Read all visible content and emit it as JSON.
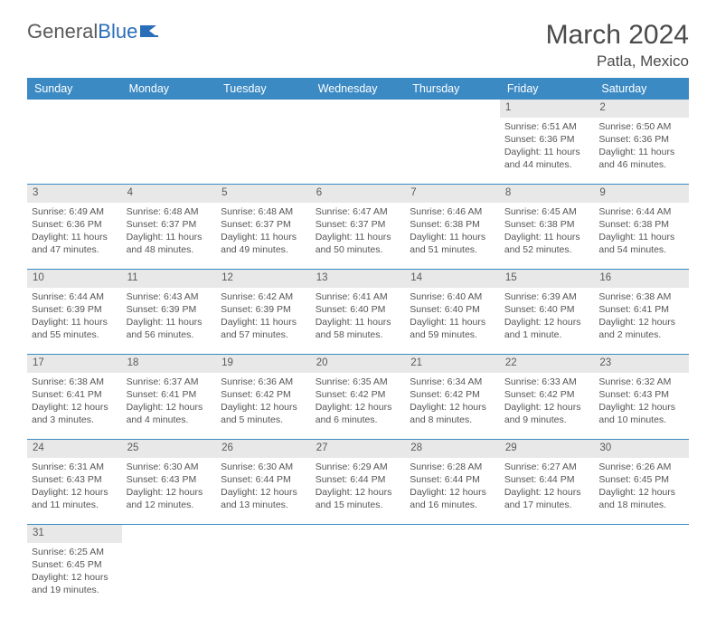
{
  "brand": {
    "part1": "General",
    "part2": "Blue"
  },
  "title": "March 2024",
  "location": "Patla, Mexico",
  "colors": {
    "header_bg": "#3b8ac4",
    "header_text": "#ffffff",
    "daynum_bg": "#e8e8e8",
    "rule": "#3b8ac4",
    "text": "#4a4a4a",
    "brand_blue": "#2a6db8"
  },
  "day_names": [
    "Sunday",
    "Monday",
    "Tuesday",
    "Wednesday",
    "Thursday",
    "Friday",
    "Saturday"
  ],
  "weeks": [
    [
      null,
      null,
      null,
      null,
      null,
      {
        "n": "1",
        "sr": "Sunrise: 6:51 AM",
        "ss": "Sunset: 6:36 PM",
        "d1": "Daylight: 11 hours",
        "d2": "and 44 minutes."
      },
      {
        "n": "2",
        "sr": "Sunrise: 6:50 AM",
        "ss": "Sunset: 6:36 PM",
        "d1": "Daylight: 11 hours",
        "d2": "and 46 minutes."
      }
    ],
    [
      {
        "n": "3",
        "sr": "Sunrise: 6:49 AM",
        "ss": "Sunset: 6:36 PM",
        "d1": "Daylight: 11 hours",
        "d2": "and 47 minutes."
      },
      {
        "n": "4",
        "sr": "Sunrise: 6:48 AM",
        "ss": "Sunset: 6:37 PM",
        "d1": "Daylight: 11 hours",
        "d2": "and 48 minutes."
      },
      {
        "n": "5",
        "sr": "Sunrise: 6:48 AM",
        "ss": "Sunset: 6:37 PM",
        "d1": "Daylight: 11 hours",
        "d2": "and 49 minutes."
      },
      {
        "n": "6",
        "sr": "Sunrise: 6:47 AM",
        "ss": "Sunset: 6:37 PM",
        "d1": "Daylight: 11 hours",
        "d2": "and 50 minutes."
      },
      {
        "n": "7",
        "sr": "Sunrise: 6:46 AM",
        "ss": "Sunset: 6:38 PM",
        "d1": "Daylight: 11 hours",
        "d2": "and 51 minutes."
      },
      {
        "n": "8",
        "sr": "Sunrise: 6:45 AM",
        "ss": "Sunset: 6:38 PM",
        "d1": "Daylight: 11 hours",
        "d2": "and 52 minutes."
      },
      {
        "n": "9",
        "sr": "Sunrise: 6:44 AM",
        "ss": "Sunset: 6:38 PM",
        "d1": "Daylight: 11 hours",
        "d2": "and 54 minutes."
      }
    ],
    [
      {
        "n": "10",
        "sr": "Sunrise: 6:44 AM",
        "ss": "Sunset: 6:39 PM",
        "d1": "Daylight: 11 hours",
        "d2": "and 55 minutes."
      },
      {
        "n": "11",
        "sr": "Sunrise: 6:43 AM",
        "ss": "Sunset: 6:39 PM",
        "d1": "Daylight: 11 hours",
        "d2": "and 56 minutes."
      },
      {
        "n": "12",
        "sr": "Sunrise: 6:42 AM",
        "ss": "Sunset: 6:39 PM",
        "d1": "Daylight: 11 hours",
        "d2": "and 57 minutes."
      },
      {
        "n": "13",
        "sr": "Sunrise: 6:41 AM",
        "ss": "Sunset: 6:40 PM",
        "d1": "Daylight: 11 hours",
        "d2": "and 58 minutes."
      },
      {
        "n": "14",
        "sr": "Sunrise: 6:40 AM",
        "ss": "Sunset: 6:40 PM",
        "d1": "Daylight: 11 hours",
        "d2": "and 59 minutes."
      },
      {
        "n": "15",
        "sr": "Sunrise: 6:39 AM",
        "ss": "Sunset: 6:40 PM",
        "d1": "Daylight: 12 hours",
        "d2": "and 1 minute."
      },
      {
        "n": "16",
        "sr": "Sunrise: 6:38 AM",
        "ss": "Sunset: 6:41 PM",
        "d1": "Daylight: 12 hours",
        "d2": "and 2 minutes."
      }
    ],
    [
      {
        "n": "17",
        "sr": "Sunrise: 6:38 AM",
        "ss": "Sunset: 6:41 PM",
        "d1": "Daylight: 12 hours",
        "d2": "and 3 minutes."
      },
      {
        "n": "18",
        "sr": "Sunrise: 6:37 AM",
        "ss": "Sunset: 6:41 PM",
        "d1": "Daylight: 12 hours",
        "d2": "and 4 minutes."
      },
      {
        "n": "19",
        "sr": "Sunrise: 6:36 AM",
        "ss": "Sunset: 6:42 PM",
        "d1": "Daylight: 12 hours",
        "d2": "and 5 minutes."
      },
      {
        "n": "20",
        "sr": "Sunrise: 6:35 AM",
        "ss": "Sunset: 6:42 PM",
        "d1": "Daylight: 12 hours",
        "d2": "and 6 minutes."
      },
      {
        "n": "21",
        "sr": "Sunrise: 6:34 AM",
        "ss": "Sunset: 6:42 PM",
        "d1": "Daylight: 12 hours",
        "d2": "and 8 minutes."
      },
      {
        "n": "22",
        "sr": "Sunrise: 6:33 AM",
        "ss": "Sunset: 6:42 PM",
        "d1": "Daylight: 12 hours",
        "d2": "and 9 minutes."
      },
      {
        "n": "23",
        "sr": "Sunrise: 6:32 AM",
        "ss": "Sunset: 6:43 PM",
        "d1": "Daylight: 12 hours",
        "d2": "and 10 minutes."
      }
    ],
    [
      {
        "n": "24",
        "sr": "Sunrise: 6:31 AM",
        "ss": "Sunset: 6:43 PM",
        "d1": "Daylight: 12 hours",
        "d2": "and 11 minutes."
      },
      {
        "n": "25",
        "sr": "Sunrise: 6:30 AM",
        "ss": "Sunset: 6:43 PM",
        "d1": "Daylight: 12 hours",
        "d2": "and 12 minutes."
      },
      {
        "n": "26",
        "sr": "Sunrise: 6:30 AM",
        "ss": "Sunset: 6:44 PM",
        "d1": "Daylight: 12 hours",
        "d2": "and 13 minutes."
      },
      {
        "n": "27",
        "sr": "Sunrise: 6:29 AM",
        "ss": "Sunset: 6:44 PM",
        "d1": "Daylight: 12 hours",
        "d2": "and 15 minutes."
      },
      {
        "n": "28",
        "sr": "Sunrise: 6:28 AM",
        "ss": "Sunset: 6:44 PM",
        "d1": "Daylight: 12 hours",
        "d2": "and 16 minutes."
      },
      {
        "n": "29",
        "sr": "Sunrise: 6:27 AM",
        "ss": "Sunset: 6:44 PM",
        "d1": "Daylight: 12 hours",
        "d2": "and 17 minutes."
      },
      {
        "n": "30",
        "sr": "Sunrise: 6:26 AM",
        "ss": "Sunset: 6:45 PM",
        "d1": "Daylight: 12 hours",
        "d2": "and 18 minutes."
      }
    ],
    [
      {
        "n": "31",
        "sr": "Sunrise: 6:25 AM",
        "ss": "Sunset: 6:45 PM",
        "d1": "Daylight: 12 hours",
        "d2": "and 19 minutes."
      },
      null,
      null,
      null,
      null,
      null,
      null
    ]
  ]
}
